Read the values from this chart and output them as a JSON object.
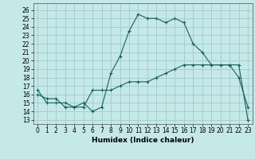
{
  "xlabel": "Humidex (Indice chaleur)",
  "background_color": "#c5e8e8",
  "grid_color": "#a0cbcb",
  "line_color": "#1a6060",
  "x_ticks": [
    0,
    1,
    2,
    3,
    4,
    5,
    6,
    7,
    8,
    9,
    10,
    11,
    12,
    13,
    14,
    15,
    16,
    17,
    18,
    19,
    20,
    21,
    22,
    23
  ],
  "y_ticks": [
    13,
    14,
    15,
    16,
    17,
    18,
    19,
    20,
    21,
    22,
    23,
    24,
    25,
    26
  ],
  "ylim": [
    12.5,
    26.8
  ],
  "xlim": [
    -0.5,
    23.5
  ],
  "curve1_x": [
    0,
    1,
    2,
    3,
    4,
    5,
    6,
    7,
    8,
    9,
    10,
    11,
    12,
    13,
    14,
    15,
    16,
    17,
    18,
    19,
    20,
    21,
    22,
    23
  ],
  "curve1_y": [
    16.5,
    15.0,
    15.0,
    15.0,
    14.5,
    15.0,
    14.0,
    14.5,
    18.5,
    20.5,
    23.5,
    25.5,
    25.0,
    25.0,
    24.5,
    25.0,
    24.5,
    22.0,
    21.0,
    19.5,
    19.5,
    19.5,
    18.0,
    14.5
  ],
  "curve2_x": [
    0,
    1,
    2,
    3,
    4,
    5,
    6,
    7,
    8,
    9,
    10,
    11,
    12,
    13,
    14,
    15,
    16,
    17,
    18,
    19,
    20,
    21,
    22,
    23
  ],
  "curve2_y": [
    16.0,
    15.5,
    15.5,
    14.5,
    14.5,
    14.5,
    16.5,
    16.5,
    16.5,
    17.0,
    17.5,
    17.5,
    17.5,
    18.0,
    18.5,
    19.0,
    19.5,
    19.5,
    19.5,
    19.5,
    19.5,
    19.5,
    19.5,
    13.0
  ],
  "marker_style": "+",
  "marker_size": 3,
  "linewidth": 0.8,
  "xlabel_fontsize": 6.5,
  "tick_fontsize": 5.5
}
